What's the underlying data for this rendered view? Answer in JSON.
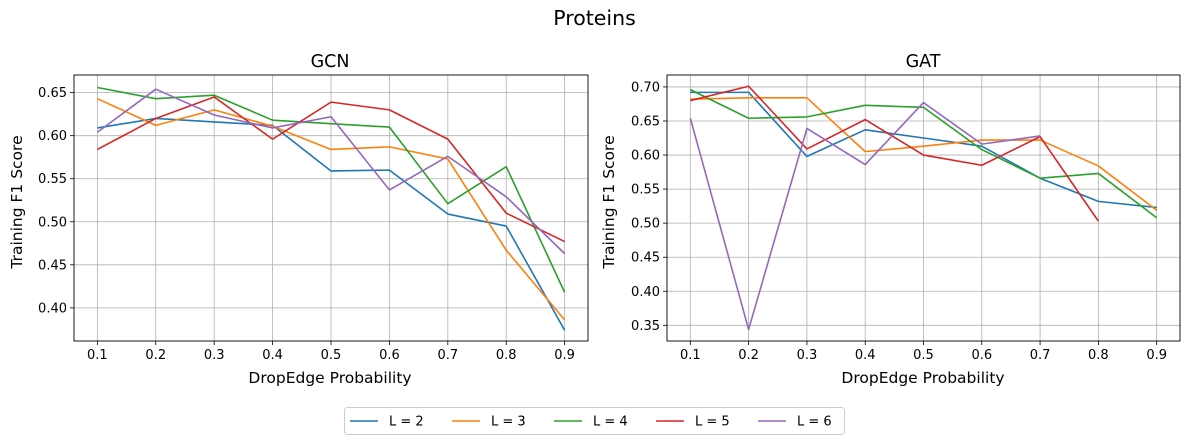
{
  "figure": {
    "suptitle": "Proteins"
  },
  "legend": {
    "entries": [
      "L = 2",
      "L = 3",
      "L = 4",
      "L = 5",
      "L = 6"
    ],
    "colors": [
      "#1f77b4",
      "#ff7f0e",
      "#2ca02c",
      "#d62728",
      "#9467bd"
    ]
  },
  "chart_data": [
    {
      "type": "line",
      "title": "GCN",
      "xlabel": "DropEdge Probability",
      "ylabel": "Training F1 Score",
      "x": [
        0.1,
        0.2,
        0.3,
        0.4,
        0.5,
        0.6,
        0.7,
        0.8,
        0.9
      ],
      "xlim": [
        0.06,
        0.94
      ],
      "ylim": [
        0.3615,
        0.6705
      ],
      "xticks": [
        "0.1",
        "0.2",
        "0.3",
        "0.4",
        "0.5",
        "0.6",
        "0.7",
        "0.8",
        "0.9"
      ],
      "yticks": [
        "0.40",
        "0.45",
        "0.50",
        "0.55",
        "0.60",
        "0.65"
      ],
      "ytick_values": [
        0.4,
        0.45,
        0.5,
        0.55,
        0.6,
        0.65
      ],
      "grid": true,
      "series": [
        {
          "name": "L = 2",
          "values": [
            0.609,
            0.62,
            0.616,
            0.612,
            0.559,
            0.56,
            0.509,
            0.495,
            0.374
          ]
        },
        {
          "name": "L = 3",
          "values": [
            0.643,
            0.612,
            0.63,
            0.611,
            0.584,
            0.587,
            0.573,
            0.467,
            0.386
          ]
        },
        {
          "name": "L = 4",
          "values": [
            0.656,
            0.643,
            0.647,
            0.618,
            0.614,
            0.61,
            0.521,
            0.564,
            0.418
          ]
        },
        {
          "name": "L = 5",
          "values": [
            0.584,
            0.62,
            0.645,
            0.596,
            0.639,
            0.63,
            0.596,
            0.51,
            0.477
          ]
        },
        {
          "name": "L = 6",
          "values": [
            0.604,
            0.654,
            0.624,
            0.609,
            0.622,
            0.537,
            0.576,
            0.529,
            0.463
          ]
        }
      ]
    },
    {
      "type": "line",
      "title": "GAT",
      "xlabel": "DropEdge Probability",
      "ylabel": "Training F1 Score",
      "x": [
        0.1,
        0.2,
        0.3,
        0.4,
        0.5,
        0.6,
        0.7,
        0.8,
        0.9
      ],
      "xlim": [
        0.06,
        0.94
      ],
      "ylim": [
        0.327,
        0.7175
      ],
      "xticks": [
        "0.1",
        "0.2",
        "0.3",
        "0.4",
        "0.5",
        "0.6",
        "0.7",
        "0.8",
        "0.9"
      ],
      "yticks": [
        "0.35",
        "0.40",
        "0.45",
        "0.50",
        "0.55",
        "0.60",
        "0.65",
        "0.70"
      ],
      "ytick_values": [
        0.35,
        0.4,
        0.45,
        0.5,
        0.55,
        0.6,
        0.65,
        0.7
      ],
      "grid": true,
      "series": [
        {
          "name": "L = 2",
          "values": [
            0.692,
            0.692,
            0.598,
            0.637,
            0.625,
            0.613,
            0.566,
            0.532,
            0.523
          ]
        },
        {
          "name": "L = 3",
          "values": [
            0.682,
            0.684,
            0.684,
            0.605,
            0.613,
            0.622,
            0.622,
            0.584,
            0.519
          ]
        },
        {
          "name": "L = 4",
          "values": [
            0.696,
            0.654,
            0.656,
            0.673,
            0.67,
            0.608,
            0.566,
            0.573,
            0.508
          ]
        },
        {
          "name": "L = 5",
          "values": [
            0.68,
            0.701,
            0.609,
            0.652,
            0.6,
            0.585,
            0.627,
            0.503,
            null
          ]
        },
        {
          "name": "L = 6",
          "values": [
            0.654,
            0.344,
            0.639,
            0.586,
            0.677,
            0.616,
            0.628,
            null,
            null
          ]
        }
      ]
    }
  ]
}
